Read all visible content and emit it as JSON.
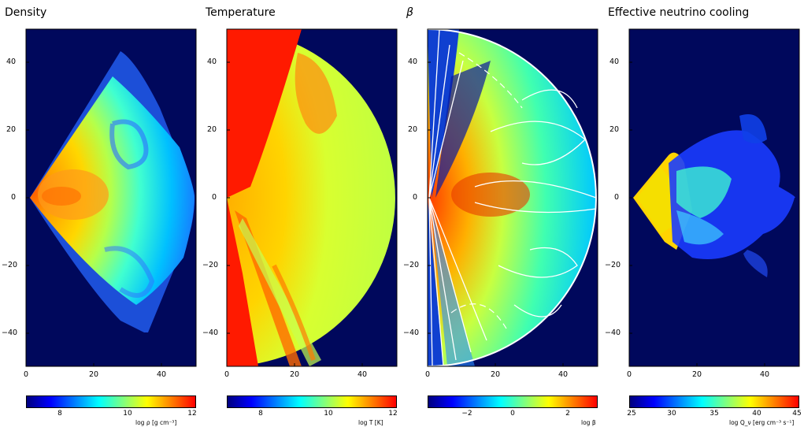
{
  "figure": {
    "colorbar_palette": [
      "#00007f",
      "#0000ff",
      "#007fff",
      "#00ffff",
      "#7fff7f",
      "#ffff00",
      "#ff7f00",
      "#ff0000"
    ],
    "background_color": "#00085c"
  },
  "chart_data": [
    {
      "type": "heatmap",
      "title": "Density",
      "xlim": [
        0,
        50
      ],
      "ylim": [
        -50,
        50
      ],
      "x_ticks": [
        "0",
        "20",
        "40"
      ],
      "y_ticks": [
        "40",
        "20",
        "0",
        "−20",
        "−40"
      ],
      "colorbar": {
        "range": [
          7,
          12
        ],
        "ticks": [
          "8",
          "10",
          "12"
        ],
        "label": "log ρ [g cm⁻³]"
      }
    },
    {
      "type": "heatmap",
      "title": "Temperature",
      "xlim": [
        0,
        50
      ],
      "ylim": [
        -50,
        50
      ],
      "x_ticks": [
        "0",
        "20",
        "40"
      ],
      "y_ticks": [
        "40",
        "20",
        "0",
        "−20",
        "−40"
      ],
      "colorbar": {
        "range": [
          7,
          12
        ],
        "ticks": [
          "8",
          "10",
          "12"
        ],
        "label": "log T [K]"
      }
    },
    {
      "type": "heatmap",
      "title": "β",
      "xlim": [
        0,
        50
      ],
      "ylim": [
        -50,
        50
      ],
      "x_ticks": [
        "0",
        "20",
        "40"
      ],
      "y_ticks": [
        "40",
        "20",
        "0",
        "−20",
        "−40"
      ],
      "colorbar": {
        "range": [
          -3,
          3
        ],
        "ticks": [
          "−2",
          "0",
          "2"
        ],
        "label": "log β"
      }
    },
    {
      "type": "heatmap",
      "title": "Effective neutrino cooling",
      "xlim": [
        0,
        50
      ],
      "ylim": [
        -50,
        50
      ],
      "x_ticks": [
        "0",
        "20",
        "40"
      ],
      "y_ticks": [
        "40",
        "20",
        "0",
        "−20",
        "−40"
      ],
      "colorbar": {
        "range": [
          25,
          45
        ],
        "ticks": [
          "25",
          "30",
          "35",
          "40",
          "45"
        ],
        "label": "log Q_ν [erg cm⁻³ s⁻¹]"
      }
    }
  ]
}
